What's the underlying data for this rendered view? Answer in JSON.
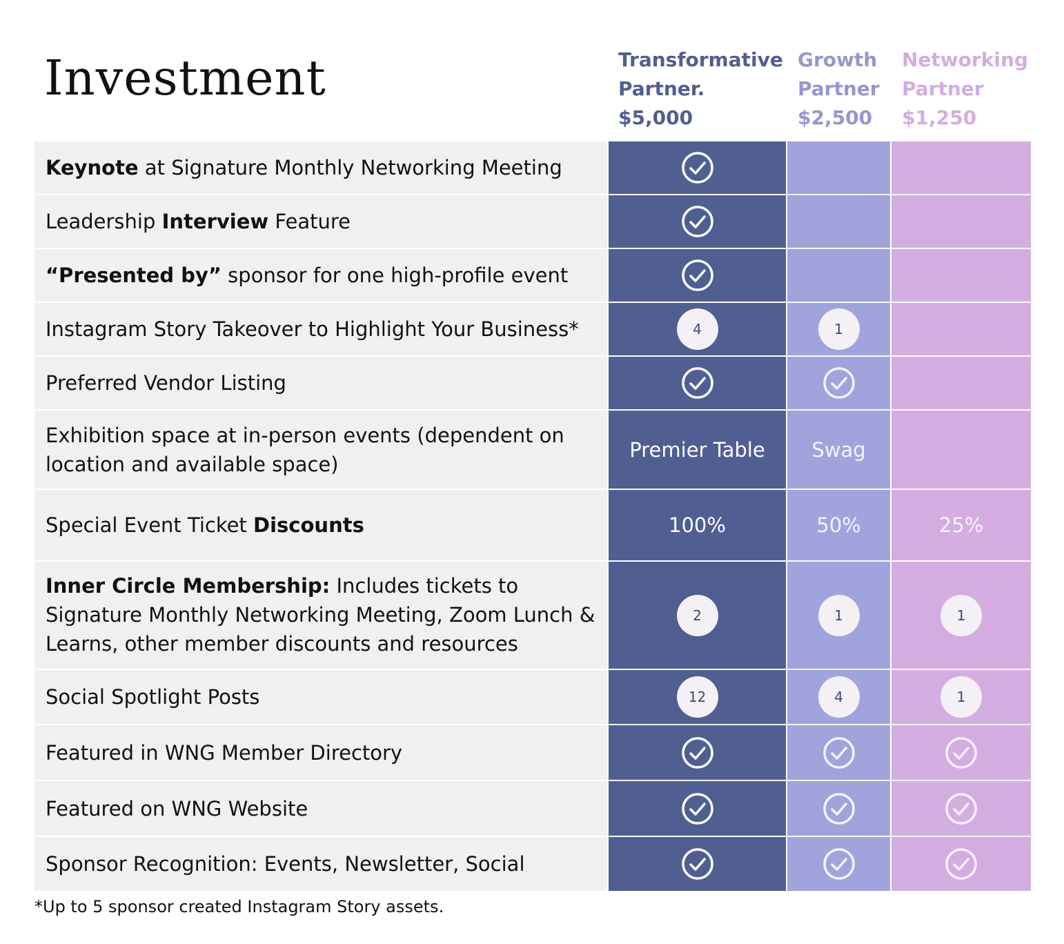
{
  "title": "Investment",
  "colors": {
    "transformative": "#505e92",
    "growth": "#a0a3dc",
    "networking": "#d3ade0",
    "label_bg": "#f0f0f0",
    "header_transformative": "#505e92",
    "header_growth": "#9497cf",
    "header_networking": "#d3ade0"
  },
  "tiers": [
    {
      "name_line1": "Transformative",
      "name_line2": "Partner.",
      "price": "$5,000"
    },
    {
      "name_line1": "Growth",
      "name_line2": "Partner",
      "price": "$2,500"
    },
    {
      "name_line1": "Networking",
      "name_line2": "Partner",
      "price": "$1,250"
    }
  ],
  "rows": [
    {
      "parts": [
        {
          "t": "Keynote",
          "b": true
        },
        {
          "t": " at Signature Monthly Networking Meeting"
        }
      ],
      "cells": [
        {
          "kind": "check",
          "icon": "check-circle-icon"
        },
        {
          "kind": "empty"
        },
        {
          "kind": "empty"
        }
      ]
    },
    {
      "parts": [
        {
          "t": "Leadership "
        },
        {
          "t": "Interview",
          "b": true
        },
        {
          "t": " Feature"
        }
      ],
      "cells": [
        {
          "kind": "check",
          "icon": "check-circle-icon"
        },
        {
          "kind": "empty"
        },
        {
          "kind": "empty"
        }
      ]
    },
    {
      "parts": [
        {
          "t": "“Presented by”",
          "b": true
        },
        {
          "t": " sponsor for one high-profile event"
        }
      ],
      "cells": [
        {
          "kind": "check",
          "icon": "check-circle-icon"
        },
        {
          "kind": "empty"
        },
        {
          "kind": "empty"
        }
      ]
    },
    {
      "parts": [
        {
          "t": "Instagram Story Takeover to Highlight Your Business*"
        }
      ],
      "cells": [
        {
          "kind": "badge",
          "value": "4"
        },
        {
          "kind": "badge",
          "value": "1"
        },
        {
          "kind": "empty"
        }
      ]
    },
    {
      "parts": [
        {
          "t": "Preferred Vendor Listing"
        }
      ],
      "cells": [
        {
          "kind": "check",
          "icon": "check-circle-icon"
        },
        {
          "kind": "check",
          "icon": "check-circle-icon"
        },
        {
          "kind": "empty"
        }
      ]
    },
    {
      "parts": [
        {
          "t": "Exhibition space at in-person events (dependent on location and available space)"
        }
      ],
      "cells": [
        {
          "kind": "text",
          "value": "Premier Table"
        },
        {
          "kind": "text",
          "value": "Swag"
        },
        {
          "kind": "empty"
        }
      ]
    },
    {
      "parts": [
        {
          "t": "Special Event Ticket "
        },
        {
          "t": "Discounts",
          "b": true
        }
      ],
      "cells": [
        {
          "kind": "text",
          "value": "100%"
        },
        {
          "kind": "text",
          "value": "50%"
        },
        {
          "kind": "text",
          "value": "25%"
        }
      ]
    },
    {
      "parts": [
        {
          "t": "Inner Circle Membership:",
          "b": true
        },
        {
          "t": " Includes tickets to Signature Monthly Networking Meeting, Zoom Lunch & Learns, other member discounts and resources"
        }
      ],
      "cells": [
        {
          "kind": "badge",
          "value": "2"
        },
        {
          "kind": "badge",
          "value": "1"
        },
        {
          "kind": "badge",
          "value": "1"
        }
      ]
    },
    {
      "parts": [
        {
          "t": "Social Spotlight Posts"
        }
      ],
      "cells": [
        {
          "kind": "badge",
          "value": "12"
        },
        {
          "kind": "badge",
          "value": "4"
        },
        {
          "kind": "badge",
          "value": "1"
        }
      ]
    },
    {
      "parts": [
        {
          "t": "Featured in WNG Member Directory"
        }
      ],
      "cells": [
        {
          "kind": "check",
          "icon": "check-circle-icon"
        },
        {
          "kind": "check",
          "icon": "check-circle-icon"
        },
        {
          "kind": "check",
          "icon": "check-circle-icon"
        }
      ]
    },
    {
      "parts": [
        {
          "t": "Featured on WNG Website"
        }
      ],
      "cells": [
        {
          "kind": "check",
          "icon": "check-circle-icon"
        },
        {
          "kind": "check",
          "icon": "check-circle-icon"
        },
        {
          "kind": "check",
          "icon": "check-circle-icon"
        }
      ]
    },
    {
      "parts": [
        {
          "t": "Sponsor Recognition: Events, Newsletter, Social"
        }
      ],
      "cells": [
        {
          "kind": "check",
          "icon": "check-circle-icon"
        },
        {
          "kind": "check",
          "icon": "check-circle-icon"
        },
        {
          "kind": "check",
          "icon": "check-circle-icon"
        }
      ]
    }
  ],
  "footnote": "*Up to 5 sponsor created Instagram Story assets."
}
